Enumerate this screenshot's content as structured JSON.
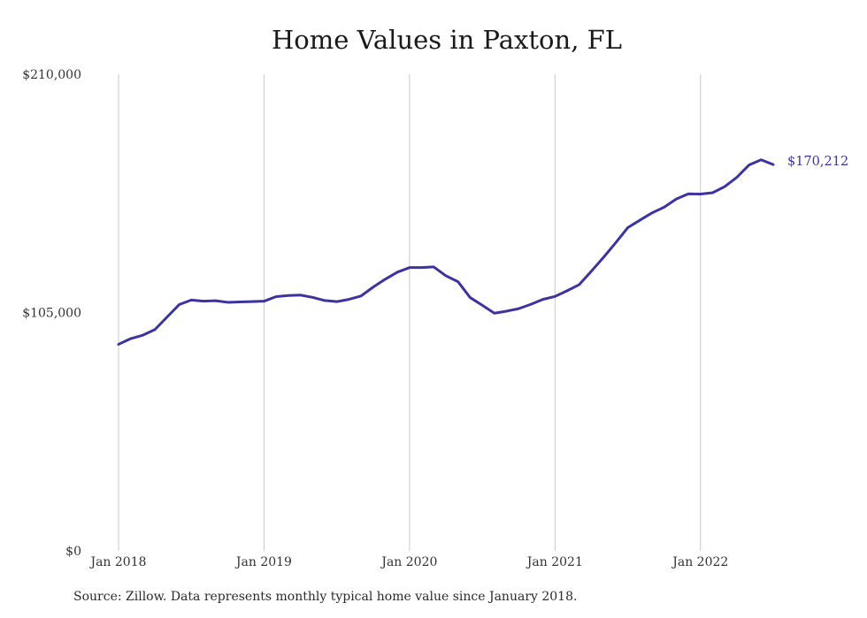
{
  "chart_data": {
    "type": "line",
    "title": "Home Values in Paxton, FL",
    "xlabel": "",
    "ylabel": "",
    "ylim": [
      0,
      210000
    ],
    "y_ticks": [
      "$0",
      "$105,000",
      "$210,000"
    ],
    "x_ticks": [
      "Jan 2018",
      "Jan 2019",
      "Jan 2020",
      "Jan 2021",
      "Jan 2022"
    ],
    "grid": "vertical",
    "line_color": "#3b34a0",
    "end_label": "$170,212",
    "series": [
      {
        "x": [
          "2018-01",
          "2018-02",
          "2018-03",
          "2018-04",
          "2018-05",
          "2018-06",
          "2018-07",
          "2018-08",
          "2018-09",
          "2018-10",
          "2018-11",
          "2018-12",
          "2019-01",
          "2019-02",
          "2019-03",
          "2019-04",
          "2019-05",
          "2019-06",
          "2019-07",
          "2019-08",
          "2019-09",
          "2019-10",
          "2019-11",
          "2019-12",
          "2020-01",
          "2020-02",
          "2020-03",
          "2020-04",
          "2020-05",
          "2020-06",
          "2020-07",
          "2020-08",
          "2020-09",
          "2020-10",
          "2020-11",
          "2020-12",
          "2021-01",
          "2021-02",
          "2021-03",
          "2021-04",
          "2021-05",
          "2021-06",
          "2021-07",
          "2021-08",
          "2021-09",
          "2021-10",
          "2021-11",
          "2021-12",
          "2022-01",
          "2022-02",
          "2022-03",
          "2022-04",
          "2022-05",
          "2022-06",
          "2022-07"
        ],
        "values": [
          91000,
          93500,
          95000,
          97500,
          103000,
          108500,
          110500,
          110000,
          110200,
          109500,
          109700,
          109800,
          110000,
          112000,
          112500,
          112700,
          111700,
          110300,
          109800,
          110800,
          112300,
          116200,
          119700,
          122800,
          124800,
          124800,
          125100,
          121200,
          118600,
          111600,
          108200,
          104700,
          105600,
          106700,
          108600,
          110800,
          112100,
          114600,
          117300,
          123200,
          129300,
          135700,
          142400,
          145700,
          148900,
          151400,
          155000,
          157300,
          157200,
          157800,
          160500,
          164600,
          170000,
          172300,
          170212
        ]
      }
    ]
  },
  "source_note": "Source: Zillow. Data represents monthly typical home value since January 2018."
}
